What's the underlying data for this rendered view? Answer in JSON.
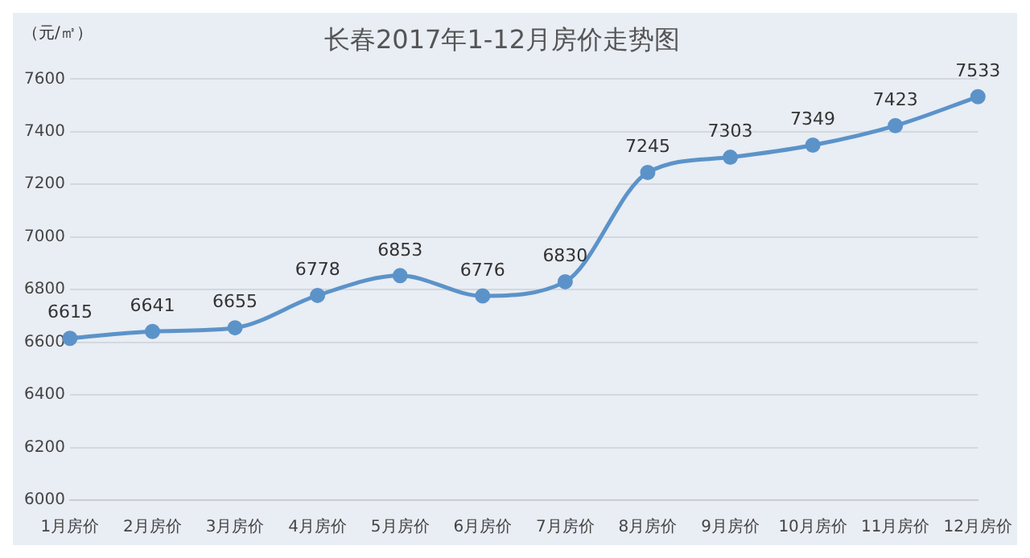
{
  "chart_data": {
    "type": "line",
    "title": "长春2017年1-12月房价走势图",
    "ylabel": "（元/㎡）",
    "categories": [
      "1月房价",
      "2月房价",
      "3月房价",
      "4月房价",
      "5月房价",
      "6月房价",
      "7月房价",
      "8月房价",
      "9月房价",
      "10月房价",
      "11月房价",
      "12月房价"
    ],
    "series": [
      {
        "color": "#5b93c9",
        "values": [
          6615,
          6641,
          6655,
          6778,
          6853,
          6776,
          6830,
          7245,
          7303,
          7349,
          7423,
          7533
        ]
      }
    ],
    "ylim": [
      6000,
      7600
    ],
    "yticks": [
      6000,
      6200,
      6400,
      6600,
      6800,
      7000,
      7200,
      7400,
      7600
    ],
    "grid": "y",
    "legend": false,
    "marker": "circle",
    "line_style": "solid",
    "data_labels": true
  }
}
